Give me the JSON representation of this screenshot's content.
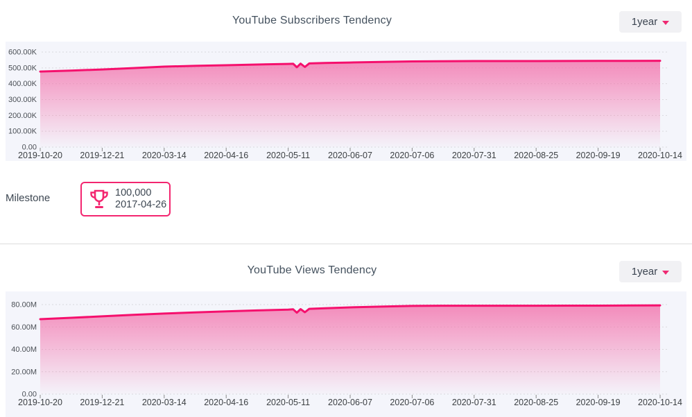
{
  "accent": "#f5106d",
  "range_selectors": [
    {
      "label": "1year",
      "icon": "caret-down-icon"
    },
    {
      "label": "1year",
      "icon": "caret-down-icon"
    }
  ],
  "milestone": {
    "label": "Milestone",
    "icon": "trophy-icon",
    "value": "100,000",
    "date": "2017-04-26"
  },
  "chart_data": [
    {
      "type": "area",
      "title": "YouTube Subscribers Tendency",
      "series_name": "Subscribers",
      "x_tick_labels": [
        "2019-10-20",
        "2019-12-21",
        "2020-03-14",
        "2020-04-16",
        "2020-05-11",
        "2020-06-07",
        "2020-07-06",
        "2020-07-31",
        "2020-08-25",
        "2020-09-19",
        "2020-10-14"
      ],
      "tick_values": [
        477000,
        490000,
        508000,
        517000,
        525000,
        534000,
        541000,
        543000,
        543000,
        544000,
        545000
      ],
      "y_tick_labels": [
        "600.00K",
        "500.00K",
        "400.00K",
        "300.00K",
        "200.00K",
        "100.00K",
        "0.00"
      ],
      "ylim": [
        0,
        600000
      ],
      "grid": "dashed",
      "legend": "none",
      "annotation": "small double-dip notch just after 2020-05-11",
      "points": [
        [
          0,
          477000
        ],
        [
          0.5,
          483000
        ],
        [
          1,
          490000
        ],
        [
          1.5,
          499000
        ],
        [
          2,
          508000
        ],
        [
          2.5,
          513000
        ],
        [
          3,
          517000
        ],
        [
          3.5,
          521000
        ],
        [
          4,
          525000
        ],
        [
          4.08,
          526000
        ],
        [
          4.14,
          504000
        ],
        [
          4.2,
          527000
        ],
        [
          4.27,
          506000
        ],
        [
          4.34,
          528000
        ],
        [
          4.6,
          531000
        ],
        [
          5,
          534000
        ],
        [
          5.5,
          538000
        ],
        [
          6,
          541000
        ],
        [
          6.5,
          542000
        ],
        [
          7,
          543000
        ],
        [
          7.5,
          543000
        ],
        [
          8,
          543000
        ],
        [
          8.5,
          543500
        ],
        [
          9,
          544000
        ],
        [
          9.5,
          544500
        ],
        [
          10,
          545000
        ]
      ],
      "line_color": "#f5106d",
      "fill_top": "rgba(243,116,173,0.82)",
      "fill_bottom": "rgba(243,116,173,0.02)",
      "plot_bg": "#f4f5fb"
    },
    {
      "type": "area",
      "title": "YouTube Views Tendency",
      "series_name": "Views",
      "x_tick_labels": [
        "2019-10-20",
        "2019-12-21",
        "2020-03-14",
        "2020-04-16",
        "2020-05-11",
        "2020-06-07",
        "2020-07-06",
        "2020-07-31",
        "2020-08-25",
        "2020-09-19",
        "2020-10-14"
      ],
      "tick_values": [
        67000000,
        69500000,
        72000000,
        74000000,
        75500000,
        77500000,
        78800000,
        79000000,
        79000000,
        79000000,
        79300000
      ],
      "y_tick_labels": [
        "80.00M",
        "60.00M",
        "40.00M",
        "20.00M",
        "0.00"
      ],
      "ylim": [
        0,
        80000000
      ],
      "grid": "dashed",
      "legend": "none",
      "annotation": "small double-dip notch just after 2020-05-11",
      "points": [
        [
          0,
          67000000
        ],
        [
          0.5,
          68200000
        ],
        [
          1,
          69500000
        ],
        [
          1.5,
          70800000
        ],
        [
          2,
          72000000
        ],
        [
          2.5,
          73000000
        ],
        [
          3,
          74000000
        ],
        [
          3.5,
          74800000
        ],
        [
          4,
          75500000
        ],
        [
          4.08,
          75800000
        ],
        [
          4.14,
          72800000
        ],
        [
          4.2,
          76000000
        ],
        [
          4.27,
          73200000
        ],
        [
          4.34,
          76200000
        ],
        [
          4.6,
          76800000
        ],
        [
          5,
          77500000
        ],
        [
          5.5,
          78200000
        ],
        [
          6,
          78800000
        ],
        [
          6.5,
          79000000
        ],
        [
          7,
          79000000
        ],
        [
          7.5,
          79000000
        ],
        [
          8,
          79000000
        ],
        [
          8.5,
          79100000
        ],
        [
          9,
          79100000
        ],
        [
          9.5,
          79200000
        ],
        [
          10,
          79300000
        ]
      ],
      "line_color": "#f5106d",
      "fill_top": "rgba(243,116,173,0.82)",
      "fill_bottom": "rgba(243,116,173,0.02)",
      "plot_bg": "#f4f5fb"
    }
  ]
}
